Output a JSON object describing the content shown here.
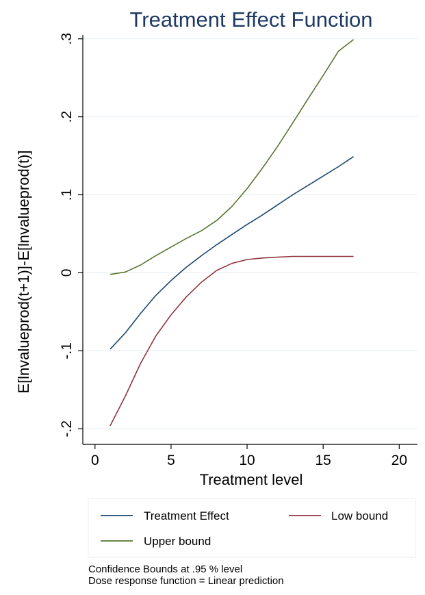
{
  "chart_data": {
    "type": "line",
    "title": "Treatment Effect Function",
    "xlabel": "Treatment level",
    "ylabel": "E[lnvalueprod(t+1)]-E[lnvalueprod(t)]",
    "xlim": [
      -0.8,
      21.2
    ],
    "ylim": [
      -0.22,
      0.305
    ],
    "xticks": [
      0,
      5,
      10,
      15,
      20
    ],
    "xtick_labels": [
      "0",
      "5",
      "10",
      "15",
      "20"
    ],
    "yticks": [
      -0.2,
      -0.1,
      0,
      0.1,
      0.2,
      0.3
    ],
    "ytick_labels": [
      "-.2",
      "-.1",
      "0",
      ".1",
      ".2",
      ".3"
    ],
    "grid": true,
    "legend_position": "bottom",
    "series": [
      {
        "name": "Treatment Effect",
        "color": "#1a476f",
        "x": [
          1,
          2,
          3,
          4,
          5,
          6,
          7,
          8,
          9,
          10,
          11,
          12,
          13,
          14,
          15,
          16,
          17
        ],
        "y": [
          -0.098,
          -0.077,
          -0.052,
          -0.029,
          -0.01,
          0.007,
          0.022,
          0.036,
          0.049,
          0.062,
          0.074,
          0.087,
          0.1,
          0.112,
          0.124,
          0.136,
          0.149
        ]
      },
      {
        "name": "Low bound",
        "color": "#90353b",
        "x": [
          1,
          2,
          3,
          4,
          5,
          6,
          7,
          8,
          9,
          10,
          11,
          12,
          13,
          14,
          15,
          16,
          17
        ],
        "y": [
          -0.196,
          -0.158,
          -0.116,
          -0.081,
          -0.054,
          -0.031,
          -0.012,
          0.003,
          0.012,
          0.017,
          0.019,
          0.02,
          0.021,
          0.021,
          0.021,
          0.021,
          0.021
        ]
      },
      {
        "name": "Upper bound",
        "color": "#55752f",
        "x": [
          1,
          2,
          3,
          4,
          5,
          6,
          7,
          8,
          9,
          10,
          11,
          12,
          13,
          14,
          15,
          16,
          17
        ],
        "y": [
          -0.002,
          0.001,
          0.01,
          0.022,
          0.033,
          0.044,
          0.054,
          0.067,
          0.085,
          0.108,
          0.134,
          0.162,
          0.192,
          0.223,
          0.253,
          0.284,
          0.299
        ]
      }
    ],
    "legend_order": [
      0,
      1,
      2
    ],
    "notes": [
      "Confidence Bounds at .95 % level",
      "Dose response function = Linear prediction"
    ]
  }
}
